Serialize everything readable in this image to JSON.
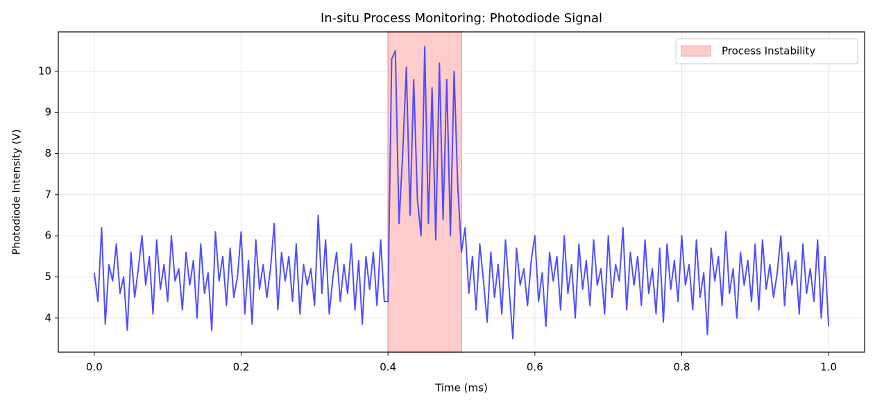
{
  "chart_data": {
    "type": "line",
    "title": "In-situ Process Monitoring: Photodiode Signal",
    "xlabel": "Time (ms)",
    "ylabel": "Photodiode Intensity (V)",
    "x": [
      0,
      0.005,
      0.01,
      0.015,
      0.02,
      0.025,
      0.03,
      0.035,
      0.04,
      0.045,
      0.05,
      0.055,
      0.06,
      0.065,
      0.07,
      0.075,
      0.08,
      0.085,
      0.09,
      0.095,
      0.1,
      0.105,
      0.11,
      0.115,
      0.12,
      0.125,
      0.13,
      0.135,
      0.14,
      0.145,
      0.15,
      0.155,
      0.16,
      0.165,
      0.17,
      0.175,
      0.18,
      0.185,
      0.19,
      0.195,
      0.2,
      0.205,
      0.21,
      0.215,
      0.22,
      0.225,
      0.23,
      0.235,
      0.24,
      0.245,
      0.25,
      0.255,
      0.26,
      0.265,
      0.27,
      0.275,
      0.28,
      0.285,
      0.29,
      0.295,
      0.3,
      0.305,
      0.31,
      0.315,
      0.32,
      0.325,
      0.33,
      0.335,
      0.34,
      0.345,
      0.35,
      0.355,
      0.36,
      0.365,
      0.37,
      0.375,
      0.38,
      0.385,
      0.39,
      0.395,
      0.4,
      0.405,
      0.41,
      0.415,
      0.42,
      0.425,
      0.43,
      0.435,
      0.44,
      0.445,
      0.45,
      0.455,
      0.46,
      0.465,
      0.47,
      0.475,
      0.48,
      0.485,
      0.49,
      0.495,
      0.5,
      0.505,
      0.51,
      0.515,
      0.52,
      0.525,
      0.53,
      0.535,
      0.54,
      0.545,
      0.55,
      0.555,
      0.56,
      0.565,
      0.57,
      0.575,
      0.58,
      0.585,
      0.59,
      0.595,
      0.6,
      0.605,
      0.61,
      0.615,
      0.62,
      0.625,
      0.63,
      0.635,
      0.64,
      0.645,
      0.65,
      0.655,
      0.66,
      0.665,
      0.67,
      0.675,
      0.68,
      0.685,
      0.69,
      0.695,
      0.7,
      0.705,
      0.71,
      0.715,
      0.72,
      0.725,
      0.73,
      0.735,
      0.74,
      0.745,
      0.75,
      0.755,
      0.76,
      0.765,
      0.77,
      0.775,
      0.78,
      0.785,
      0.79,
      0.795,
      0.8,
      0.805,
      0.81,
      0.815,
      0.82,
      0.825,
      0.83,
      0.835,
      0.84,
      0.845,
      0.85,
      0.855,
      0.86,
      0.865,
      0.87,
      0.875,
      0.88,
      0.885,
      0.89,
      0.895,
      0.9,
      0.905,
      0.91,
      0.915,
      0.92,
      0.925,
      0.93,
      0.935,
      0.94,
      0.945,
      0.95,
      0.955,
      0.96,
      0.965,
      0.97,
      0.975,
      0.98,
      0.985,
      0.99,
      0.995,
      1
    ],
    "values": [
      5.1,
      4.4,
      6.2,
      3.85,
      5.3,
      4.9,
      5.8,
      4.6,
      5.0,
      3.7,
      5.6,
      4.5,
      5.2,
      6.0,
      4.8,
      5.5,
      4.1,
      5.9,
      4.7,
      5.3,
      4.4,
      6.0,
      4.9,
      5.2,
      4.2,
      5.6,
      4.8,
      5.4,
      4.0,
      5.8,
      4.6,
      5.1,
      3.7,
      6.1,
      4.9,
      5.5,
      4.3,
      5.7,
      4.5,
      5.0,
      6.1,
      4.1,
      5.4,
      3.85,
      5.9,
      4.7,
      5.3,
      4.5,
      5.2,
      6.3,
      4.2,
      5.6,
      4.9,
      5.5,
      4.4,
      5.8,
      4.1,
      5.3,
      4.8,
      5.2,
      4.3,
      6.5,
      4.6,
      5.9,
      4.1,
      5.0,
      5.6,
      4.4,
      5.3,
      4.6,
      5.8,
      4.2,
      5.4,
      3.85,
      5.5,
      4.7,
      5.6,
      4.3,
      5.9,
      4.4,
      4.4,
      10.3,
      10.5,
      6.3,
      8.0,
      10.1,
      6.5,
      9.8,
      6.9,
      6.0,
      10.6,
      6.3,
      9.6,
      5.9,
      10.2,
      6.4,
      9.8,
      6.0,
      10.0,
      7.2,
      5.6,
      6.2,
      4.6,
      5.5,
      4.2,
      5.8,
      4.9,
      3.9,
      5.6,
      4.5,
      5.3,
      4.1,
      5.9,
      4.7,
      3.5,
      5.7,
      4.8,
      5.2,
      4.3,
      5.4,
      6.0,
      4.4,
      5.1,
      3.8,
      5.6,
      4.9,
      5.5,
      4.2,
      6.0,
      4.6,
      5.3,
      4.0,
      5.8,
      4.7,
      5.4,
      4.3,
      5.9,
      4.8,
      5.2,
      4.1,
      6.0,
      4.5,
      5.3,
      4.9,
      6.2,
      4.2,
      5.6,
      4.8,
      5.5,
      4.3,
      5.9,
      4.6,
      5.2,
      4.1,
      5.7,
      3.9,
      5.8,
      4.7,
      5.4,
      4.4,
      6.0,
      4.8,
      5.3,
      4.2,
      5.9,
      4.5,
      5.1,
      3.6,
      5.7,
      4.9,
      5.5,
      4.3,
      6.1,
      4.6,
      5.2,
      4.0,
      5.6,
      4.8,
      5.4,
      4.4,
      5.8,
      4.2,
      5.9,
      4.7,
      5.3,
      4.5,
      5.1,
      6.0,
      4.3,
      5.6,
      4.8,
      5.4,
      4.1,
      5.8,
      4.6,
      5.2,
      4.4,
      5.9,
      4.0,
      5.5,
      3.8
    ],
    "color": "#4444ff",
    "shaded_region": {
      "name": "Process Instability",
      "start": 0.4,
      "end": 0.5,
      "color": "#ffcccc"
    },
    "xlim": [
      -0.049,
      1.049
    ],
    "ylim": [
      3.17,
      10.96
    ],
    "xticks": [
      {
        "value": 0,
        "label": "0.0"
      },
      0.2,
      0.4,
      0.6,
      0.8,
      {
        "value": 1,
        "label": "1.0"
      }
    ],
    "yticks": [
      4,
      5,
      6,
      7,
      8,
      9,
      10
    ],
    "grid": true,
    "legend": "upper right"
  }
}
